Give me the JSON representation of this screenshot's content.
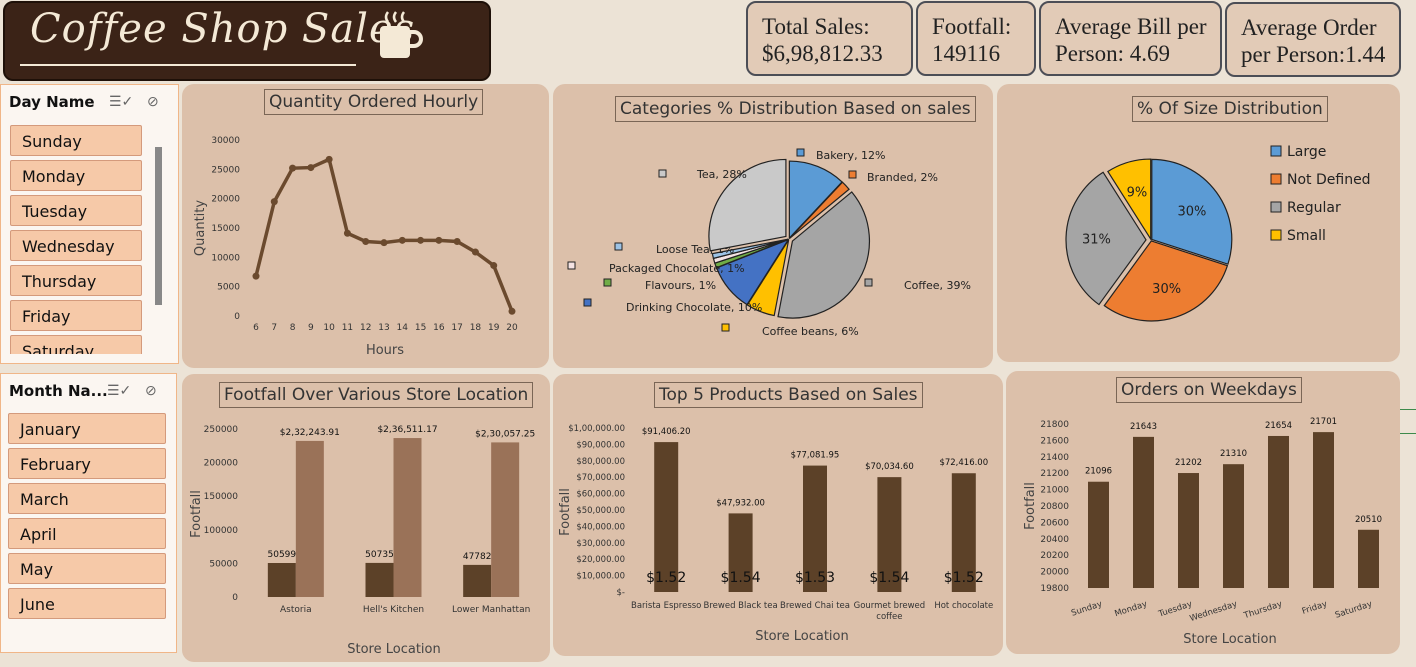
{
  "header": {
    "title": "Coffee Shop Sales",
    "icon": "coffee-cup-icon"
  },
  "kpis": {
    "total_sales": "Total Sales: $6,98,812.33",
    "footfall": "Footfall: 149116",
    "avg_bill": "Average Bill per Person: 4.69",
    "avg_order": "Average Order per Person:1.44"
  },
  "slicer_day": {
    "title": "Day Name",
    "items": [
      "Sunday",
      "Monday",
      "Tuesday",
      "Wednesday",
      "Thursday",
      "Friday",
      "Saturday"
    ]
  },
  "slicer_month": {
    "title": "Month Na...",
    "items": [
      "January",
      "February",
      "March",
      "April",
      "May",
      "June"
    ]
  },
  "colors": {
    "brown": "#6b4a2e",
    "dark_brown": "#5c4128",
    "light_brown": "#9a7258",
    "blue": "#5b9bd5",
    "orange": "#ed7d31",
    "gray": "#a5a5a5",
    "yellow": "#ffc000",
    "green": "#70ad47",
    "royal_blue": "#4472c4"
  },
  "chart_data": [
    {
      "type": "line",
      "title": "Quantity Ordered Hourly",
      "xlabel": "Hours",
      "ylabel": "Quantity",
      "x": [
        6,
        7,
        8,
        9,
        10,
        11,
        12,
        13,
        14,
        15,
        16,
        17,
        18,
        19,
        20
      ],
      "values": [
        6800,
        19500,
        25200,
        25300,
        26700,
        14100,
        12700,
        12500,
        12900,
        12900,
        12900,
        12700,
        10900,
        8600,
        800
      ],
      "yticks": [
        0,
        5000,
        10000,
        15000,
        20000,
        25000,
        30000
      ],
      "ylim": [
        0,
        30000
      ]
    },
    {
      "type": "pie",
      "title": "Categories % Distribution Based on sales",
      "slices": [
        {
          "label": "Bakery, 12%",
          "value": 12,
          "color": "#5b9bd5"
        },
        {
          "label": "Branded, 2%",
          "value": 2,
          "color": "#ed7d31"
        },
        {
          "label": "Coffee, 39%",
          "value": 39,
          "color": "#a5a5a5"
        },
        {
          "label": "Coffee beans, 6%",
          "value": 6,
          "color": "#ffc000"
        },
        {
          "label": "Drinking Chocolate, 10%",
          "value": 10,
          "color": "#4472c4"
        },
        {
          "label": "Flavours, 1%",
          "value": 1,
          "color": "#70ad47"
        },
        {
          "label": "Packaged Chocolate, 1%",
          "value": 1,
          "color": "#f4e3e3"
        },
        {
          "label": "Loose Tea, 1%",
          "value": 1,
          "color": "#9dc3e6"
        },
        {
          "label": "Tea, 28%",
          "value": 28,
          "color": "#c9c9c9"
        }
      ]
    },
    {
      "type": "pie",
      "title": "% Of Size Distribution",
      "legend": [
        "Large",
        "Not Defined",
        "Regular",
        "Small"
      ],
      "slices": [
        {
          "label": "Large",
          "value": 30,
          "text": "30%",
          "color": "#5b9bd5"
        },
        {
          "label": "Not Defined",
          "value": 30,
          "text": "30%",
          "color": "#ed7d31"
        },
        {
          "label": "Regular",
          "value": 31,
          "text": "31%",
          "color": "#a5a5a5"
        },
        {
          "label": "Small",
          "value": 9,
          "text": "9%",
          "color": "#ffc000"
        }
      ]
    },
    {
      "type": "bar",
      "title": "Footfall Over Various Store Location",
      "xlabel": "Store Location",
      "ylabel": "Footfall",
      "categories": [
        "Astoria",
        "Hell's Kitchen",
        "Lower Manhattan"
      ],
      "series": [
        {
          "values": [
            50599,
            50735,
            47782
          ],
          "labels": [
            "50599",
            "50735",
            "47782"
          ],
          "color": "#5c4128"
        },
        {
          "values": [
            232243.91,
            236511.17,
            230057.25
          ],
          "labels": [
            "$2,32,243.91",
            "$2,36,511.17",
            "$2,30,057.25"
          ],
          "color": "#9a7258"
        }
      ],
      "yticks": [
        "0",
        "50000",
        "100000",
        "150000",
        "200000",
        "250000"
      ],
      "ylim": [
        0,
        250000
      ]
    },
    {
      "type": "bar",
      "title": "Top 5 Products Based on Sales",
      "xlabel": "Store Location",
      "ylabel": "Footfall",
      "categories": [
        "Barista Espresso",
        "Brewed Black tea",
        "Brewed Chai tea",
        "Gourmet brewed coffee",
        "Hot chocolate"
      ],
      "values": [
        91406.2,
        47932.0,
        77081.95,
        70034.6,
        72416.0
      ],
      "labels": [
        "$91,406.20",
        "$47,932.00",
        "$77,081.95",
        "$70,034.60",
        "$72,416.00"
      ],
      "inner_labels": [
        "$1.52",
        "$1.54",
        "$1.53",
        "$1.54",
        "$1.52"
      ],
      "yticks": [
        "$-",
        "$10,000.00",
        "$20,000.00",
        "$30,000.00",
        "$40,000.00",
        "$50,000.00",
        "$60,000.00",
        "$70,000.00",
        "$80,000.00",
        "$90,000.00",
        "$1,00,000.00"
      ],
      "ylim": [
        0,
        100000
      ]
    },
    {
      "type": "bar",
      "title": "Orders on Weekdays",
      "xlabel": "Store Location",
      "ylabel": "Footfall",
      "categories": [
        "Sunday",
        "Monday",
        "Tuesday",
        "Wednesday",
        "Thursday",
        "Friday",
        "Saturday"
      ],
      "values": [
        21096,
        21643,
        21202,
        21310,
        21654,
        21701,
        20510
      ],
      "yticks": [
        "19800",
        "20000",
        "20200",
        "20400",
        "20600",
        "20800",
        "21000",
        "21200",
        "21400",
        "21600",
        "21800"
      ],
      "ylim": [
        19800,
        21800
      ]
    }
  ]
}
